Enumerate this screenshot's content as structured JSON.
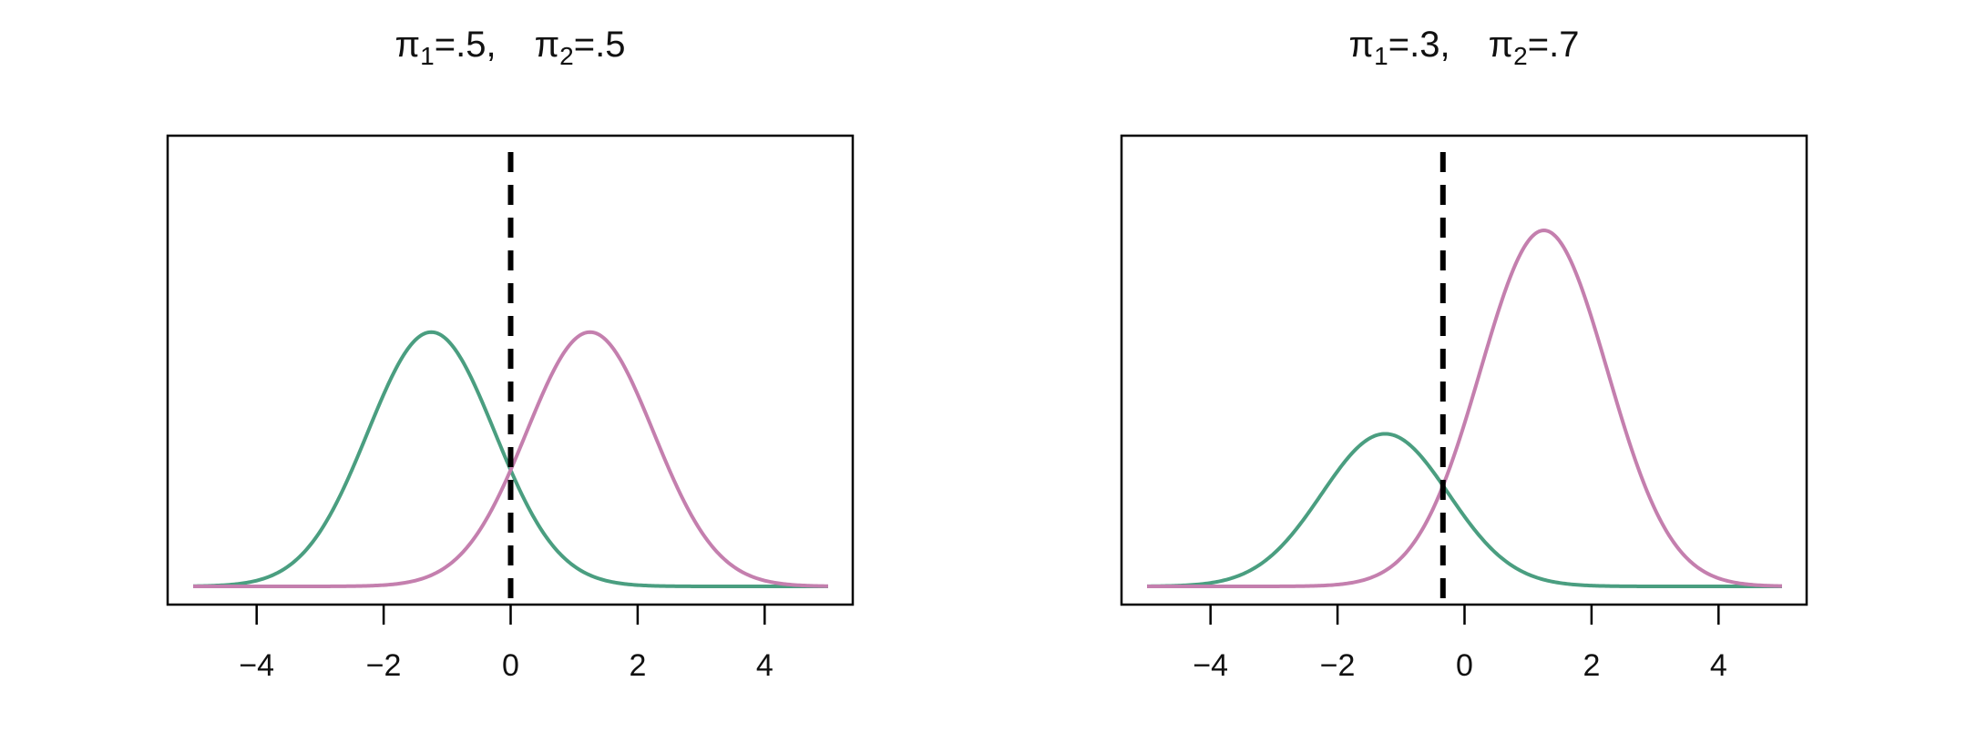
{
  "chart_data": [
    {
      "type": "line",
      "title_parts": {
        "pi": "π",
        "sub1": "1",
        "val1": "=.5,",
        "sub2": "2",
        "val2": "=.5"
      },
      "title": "π1=.5,   π2=.5",
      "xlim": [
        -5,
        5
      ],
      "x_ticks": [
        -4,
        -2,
        0,
        2,
        4
      ],
      "x_tick_labels": [
        "−4",
        "−2",
        "0",
        "2",
        "4"
      ],
      "yaxis_shown": false,
      "priors": [
        0.5,
        0.5
      ],
      "series": [
        {
          "mean": -1.25,
          "sd": 1,
          "weight": 0.5,
          "color": "#4a9e80"
        },
        {
          "mean": 1.25,
          "sd": 1,
          "weight": 0.5,
          "color": "#c47fae"
        }
      ],
      "decision_boundary": {
        "x": 0,
        "style": "dashed",
        "color": "#000000"
      }
    },
    {
      "type": "line",
      "title_parts": {
        "pi": "π",
        "sub1": "1",
        "val1": "=.3,",
        "sub2": "2",
        "val2": "=.7"
      },
      "title": "π1=.3,   π2=.7",
      "xlim": [
        -5,
        5
      ],
      "x_ticks": [
        -4,
        -2,
        0,
        2,
        4
      ],
      "x_tick_labels": [
        "−4",
        "−2",
        "0",
        "2",
        "4"
      ],
      "yaxis_shown": false,
      "priors": [
        0.3,
        0.7
      ],
      "series": [
        {
          "mean": -1.25,
          "sd": 1,
          "weight": 0.3,
          "color": "#4a9e80"
        },
        {
          "mean": 1.25,
          "sd": 1,
          "weight": 0.7,
          "color": "#c47fae"
        }
      ],
      "decision_boundary": {
        "x": -0.34,
        "style": "dashed",
        "color": "#000000"
      }
    }
  ]
}
